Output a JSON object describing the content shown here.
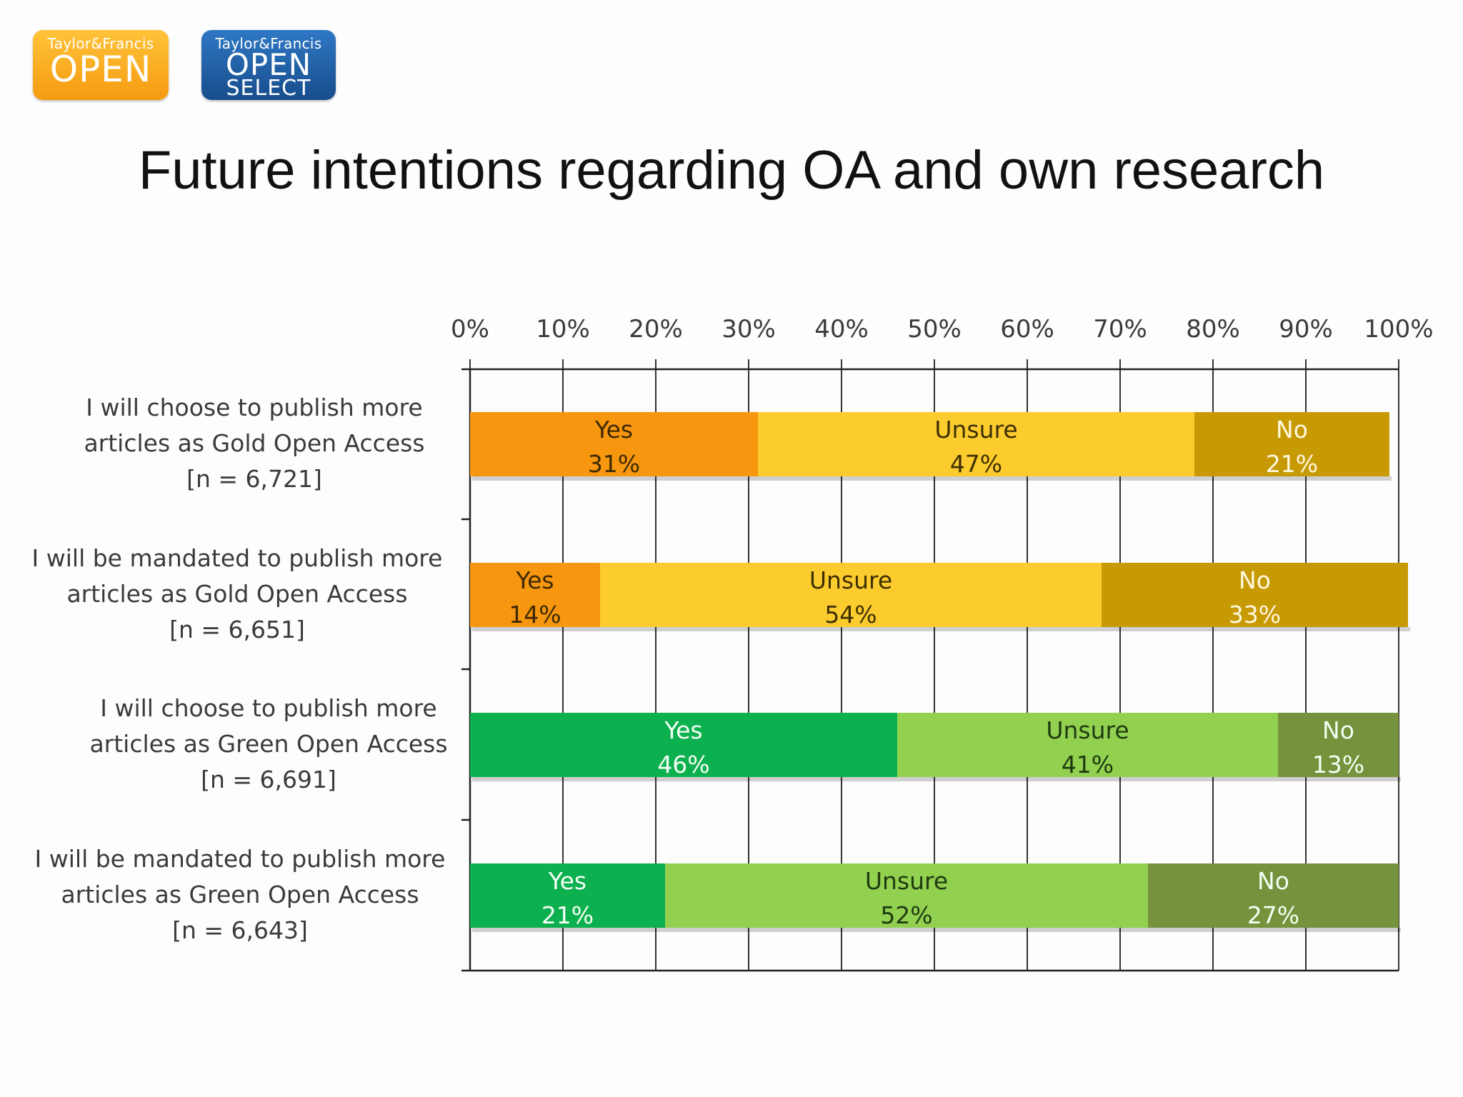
{
  "logos": {
    "open": {
      "brand": "Taylor&Francis",
      "word": "OPEN"
    },
    "select": {
      "brand": "Taylor&Francis",
      "word": "OPEN",
      "sub": "SELECT"
    }
  },
  "chart_data": {
    "type": "bar",
    "orientation": "horizontal",
    "stacked": true,
    "title": "Future intentions regarding OA and own research",
    "xlim": [
      0,
      100
    ],
    "x_ticks": [
      "0%",
      "10%",
      "20%",
      "30%",
      "40%",
      "50%",
      "60%",
      "70%",
      "80%",
      "90%",
      "100%"
    ],
    "grid": true,
    "categories": [
      {
        "lines": [
          "I will choose to publish more",
          "articles as Gold Open Access",
          "[n = 6,721]"
        ]
      },
      {
        "lines": [
          "I will be mandated to publish more",
          "articles as Gold Open Access",
          "[n = 6,651]"
        ]
      },
      {
        "lines": [
          "I will choose to publish more",
          "articles as Green Open Access",
          "[n = 6,691]"
        ]
      },
      {
        "lines": [
          "I will be mandated to publish more",
          "articles as Green Open Access",
          "[n = 6,643]"
        ]
      }
    ],
    "segment_names": [
      "Yes",
      "Unsure",
      "No"
    ],
    "bars": [
      {
        "values": [
          31,
          47,
          21
        ],
        "labels": [
          "31%",
          "47%",
          "21%"
        ],
        "colors": [
          "#f7960f",
          "#fccb2e",
          "#c79a04"
        ],
        "text_colors": [
          "#3d2a00",
          "#3d3000",
          "#fff8e0"
        ]
      },
      {
        "values": [
          14,
          54,
          33
        ],
        "labels": [
          "14%",
          "54%",
          "33%"
        ],
        "colors": [
          "#f7960f",
          "#fccb2e",
          "#c79a04"
        ],
        "text_colors": [
          "#3d2a00",
          "#3d3000",
          "#fff8e0"
        ]
      },
      {
        "values": [
          46,
          41,
          13
        ],
        "labels": [
          "46%",
          "41%",
          "13%"
        ],
        "colors": [
          "#0db04f",
          "#92d050",
          "#76923c"
        ],
        "text_colors": [
          "#f4fff4",
          "#1f3a10",
          "#f4fff4"
        ]
      },
      {
        "values": [
          21,
          52,
          27
        ],
        "labels": [
          "21%",
          "52%",
          "27%"
        ],
        "colors": [
          "#0db04f",
          "#92d050",
          "#76923c"
        ],
        "text_colors": [
          "#f4fff4",
          "#1f3a10",
          "#f4fff4"
        ]
      }
    ]
  }
}
